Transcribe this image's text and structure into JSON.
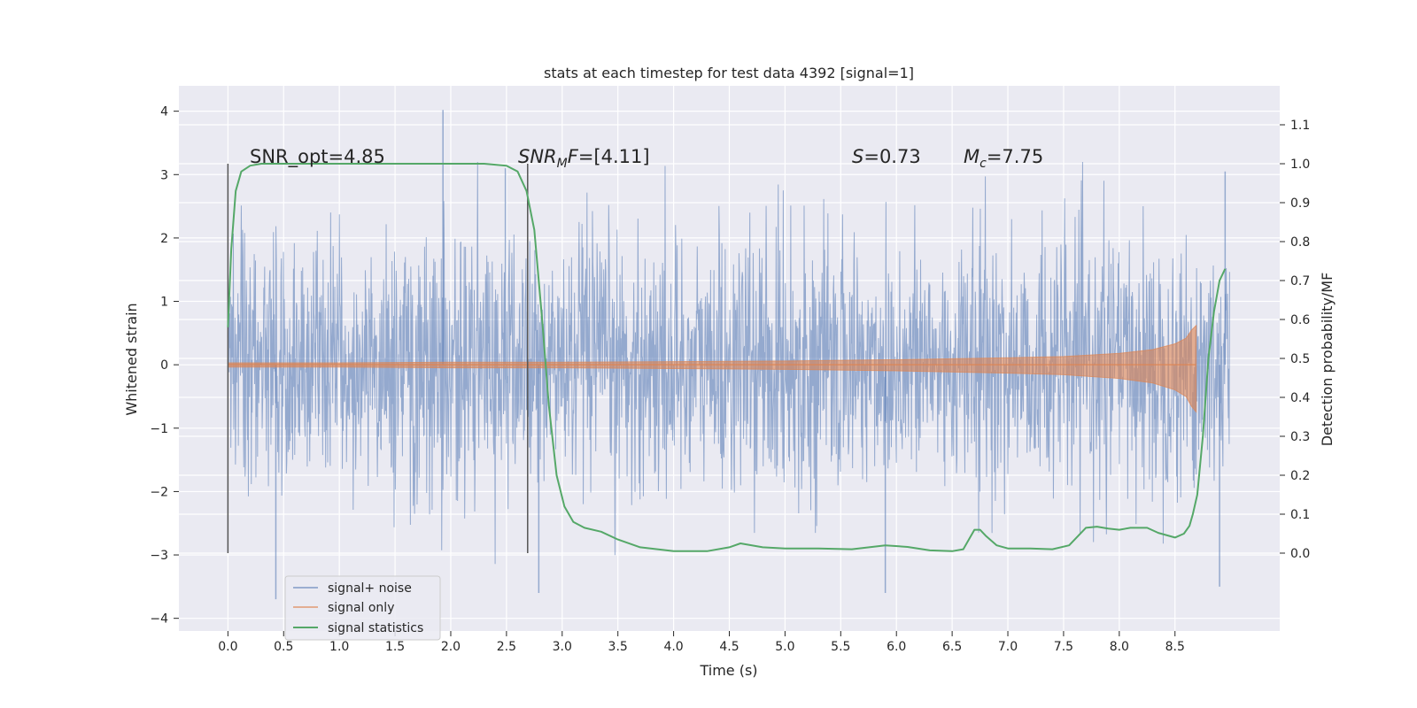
{
  "chart_data": {
    "type": "line",
    "title": "stats at each timestep for test data 4392 [signal=1]",
    "xlabel": "Time (s)",
    "ylabel_left": "Whitened strain",
    "ylabel_right": "Detection probability/MF",
    "xlim": [
      -0.44,
      9.44
    ],
    "ylim_left": [
      -4.2,
      4.4
    ],
    "ylim_right": [
      -0.2,
      1.2
    ],
    "x_ticks": [
      "0.0",
      "0.5",
      "1.0",
      "1.5",
      "2.0",
      "2.5",
      "3.0",
      "3.5",
      "4.0",
      "4.5",
      "5.0",
      "5.5",
      "6.0",
      "6.5",
      "7.0",
      "7.5",
      "8.0",
      "8.5"
    ],
    "y_left_ticks": [
      "4",
      "3",
      "2",
      "1",
      "0",
      "−1",
      "−2",
      "−3",
      "−4"
    ],
    "y_right_ticks": [
      "1.1",
      "1.0",
      "0.9",
      "0.8",
      "0.7",
      "0.6",
      "0.5",
      "0.4",
      "0.3",
      "0.2",
      "0.1",
      "0.0"
    ],
    "grid": true,
    "legend_position": "lower-left",
    "annotations": {
      "snr_opt": "SNR_opt=4.85",
      "snr_mf_sym": "SNR",
      "snr_mf_sub": "M",
      "snr_mf_sym2": "F",
      "snr_mf_val": "=[4.11]",
      "s_sym": "S",
      "s_val": "=0.73",
      "mc_sym": "M",
      "mc_sub": "c",
      "mc_val": "=7.75"
    },
    "vertical_markers_x": [
      0.0,
      2.69
    ],
    "series": [
      {
        "name": "signal+ noise",
        "axis": "left",
        "color": "#4c72b0",
        "kind": "noise",
        "x_range": [
          0.0,
          8.99
        ],
        "sigma": 1.0,
        "extremes_top": [
          [
            1.93,
            4.02
          ],
          [
            2.49,
            3.1
          ],
          [
            8.95,
            3.05
          ]
        ],
        "extremes_bottom": [
          [
            0.43,
            -3.7
          ],
          [
            2.79,
            -3.6
          ],
          [
            5.9,
            -3.6
          ],
          [
            8.9,
            -3.5
          ]
        ]
      },
      {
        "name": "signal only",
        "axis": "left",
        "color": "#dd8452",
        "kind": "chirp",
        "x": [
          0.0,
          1.0,
          2.0,
          3.0,
          4.0,
          5.0,
          6.0,
          7.0,
          7.5,
          8.0,
          8.3,
          8.5,
          8.6,
          8.65,
          8.69
        ],
        "envelope": [
          0.03,
          0.03,
          0.04,
          0.04,
          0.05,
          0.06,
          0.08,
          0.11,
          0.13,
          0.18,
          0.24,
          0.33,
          0.42,
          0.55,
          0.62
        ]
      },
      {
        "name": "signal statistics",
        "axis": "right",
        "color": "#55a868",
        "kind": "line",
        "x": [
          0.0,
          0.03,
          0.07,
          0.12,
          0.2,
          0.3,
          0.5,
          1.0,
          1.5,
          2.0,
          2.3,
          2.5,
          2.6,
          2.68,
          2.75,
          2.82,
          2.88,
          2.95,
          3.02,
          3.1,
          3.2,
          3.35,
          3.5,
          3.7,
          4.0,
          4.3,
          4.5,
          4.6,
          4.8,
          5.0,
          5.3,
          5.6,
          5.9,
          6.1,
          6.3,
          6.5,
          6.6,
          6.7,
          6.75,
          6.8,
          6.9,
          7.0,
          7.2,
          7.4,
          7.55,
          7.7,
          7.8,
          7.9,
          8.0,
          8.1,
          8.25,
          8.35,
          8.5,
          8.58,
          8.63,
          8.66,
          8.7,
          8.75,
          8.8,
          8.85,
          8.9,
          8.95
        ],
        "y": [
          0.58,
          0.78,
          0.93,
          0.98,
          0.995,
          1.0,
          1.0,
          1.0,
          1.0,
          1.0,
          1.0,
          0.995,
          0.98,
          0.93,
          0.83,
          0.6,
          0.38,
          0.2,
          0.12,
          0.08,
          0.065,
          0.055,
          0.035,
          0.015,
          0.005,
          0.005,
          0.015,
          0.025,
          0.015,
          0.012,
          0.012,
          0.01,
          0.02,
          0.016,
          0.007,
          0.005,
          0.01,
          0.06,
          0.06,
          0.045,
          0.02,
          0.012,
          0.012,
          0.01,
          0.02,
          0.065,
          0.068,
          0.063,
          0.06,
          0.065,
          0.065,
          0.052,
          0.04,
          0.05,
          0.07,
          0.1,
          0.15,
          0.3,
          0.5,
          0.62,
          0.7,
          0.73
        ]
      }
    ]
  }
}
